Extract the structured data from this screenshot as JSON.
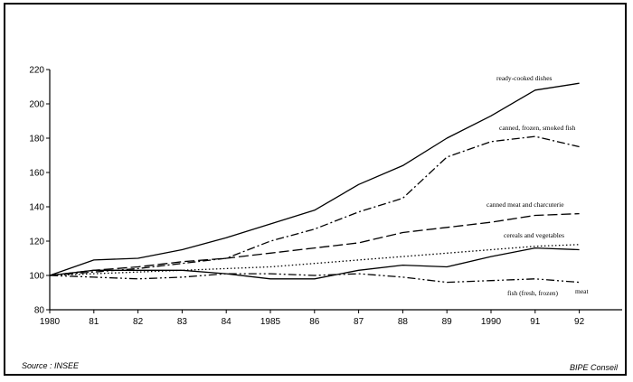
{
  "chart_data": {
    "type": "line",
    "x_labels": [
      "1980",
      "81",
      "82",
      "83",
      "84",
      "1985",
      "86",
      "87",
      "88",
      "89",
      "1990",
      "91",
      "92"
    ],
    "ylim": [
      80,
      220
    ],
    "yticks": [
      80,
      100,
      120,
      140,
      160,
      180,
      200,
      220
    ],
    "grid": false,
    "series": [
      {
        "name": "ready-cooked dishes",
        "dash": "solid",
        "values": [
          100,
          109,
          110,
          115,
          122,
          130,
          138,
          153,
          164,
          180,
          193,
          208,
          212
        ]
      },
      {
        "name": "canned, frozen, smoked fish",
        "dash": "dashdot",
        "values": [
          100,
          102,
          104,
          107,
          110,
          120,
          127,
          137,
          145,
          169,
          178,
          181,
          175
        ]
      },
      {
        "name": "canned meat and charcuterie",
        "dash": "longdash",
        "values": [
          100,
          103,
          105,
          108,
          110,
          113,
          116,
          119,
          125,
          128,
          131,
          135,
          136
        ]
      },
      {
        "name": "cereals and vegetables",
        "dash": "dotted",
        "values": [
          100,
          101,
          102,
          103,
          104,
          105,
          107,
          109,
          111,
          113,
          115,
          117,
          118
        ]
      },
      {
        "name": "fish (fresh, frozen)",
        "dash": "solid",
        "values": [
          100,
          103,
          103,
          103,
          101,
          98,
          98,
          103,
          106,
          105,
          111,
          116,
          115
        ]
      },
      {
        "name": "meat",
        "dash": "dashdotdot",
        "values": [
          100,
          99,
          98,
          99,
          101,
          101,
          100,
          101,
          99,
          96,
          97,
          98,
          96
        ]
      }
    ]
  },
  "footer": {
    "source": "Source : INSEE",
    "credit": "BIPE Conseil"
  }
}
